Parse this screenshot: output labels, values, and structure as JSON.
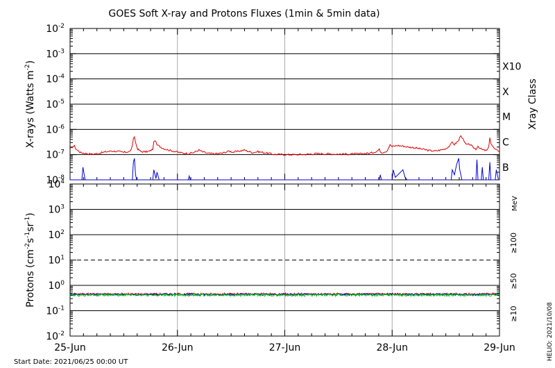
{
  "chart_data": {
    "title": "GOES Soft X-ray and Protons Fluxes   (1min & 5min data)",
    "footer_left": "Start Date: 2021/06/25 00:00 UT",
    "footer_right": "HELIO: 2021/10/08",
    "x_tick_labels": [
      "25-Jun",
      "26-Jun",
      "27-Jun",
      "28-Jun",
      "29-Jun"
    ],
    "xlim": [
      0,
      4
    ],
    "panels": [
      {
        "id": "xray",
        "type": "line",
        "y_scale": "log",
        "ylabel_parts": [
          "X-rays (Watts m",
          "-2",
          ")"
        ],
        "ylim_exp": [
          -8,
          -2
        ],
        "tick_exponents": [
          -8,
          -7,
          -6,
          -5,
          -4,
          -3,
          -2
        ],
        "solid_grid_exponents": [
          -7,
          -6,
          -5,
          -4,
          -3
        ],
        "right_axis_title": "Xray Class",
        "class_labels": [
          {
            "label": "B",
            "exp": -7.5
          },
          {
            "label": "C",
            "exp": -6.5
          },
          {
            "label": "M",
            "exp": -5.5
          },
          {
            "label": "X",
            "exp": -4.5
          },
          {
            "label": "X10",
            "exp": -3.5
          }
        ],
        "series": [
          {
            "color": "#dd0000",
            "points": [
              [
                0.0,
                -6.78
              ],
              [
                0.02,
                -6.7
              ],
              [
                0.04,
                -6.66
              ],
              [
                0.06,
                -6.8
              ],
              [
                0.1,
                -6.92
              ],
              [
                0.14,
                -6.95
              ],
              [
                0.2,
                -6.98
              ],
              [
                0.26,
                -6.96
              ],
              [
                0.32,
                -6.9
              ],
              [
                0.38,
                -6.86
              ],
              [
                0.44,
                -6.87
              ],
              [
                0.5,
                -6.91
              ],
              [
                0.56,
                -6.87
              ],
              [
                0.58,
                -6.66
              ],
              [
                0.59,
                -6.4
              ],
              [
                0.6,
                -6.28
              ],
              [
                0.61,
                -6.52
              ],
              [
                0.63,
                -6.78
              ],
              [
                0.66,
                -6.88
              ],
              [
                0.7,
                -6.89
              ],
              [
                0.74,
                -6.87
              ],
              [
                0.77,
                -6.78
              ],
              [
                0.78,
                -6.52
              ],
              [
                0.79,
                -6.42
              ],
              [
                0.81,
                -6.62
              ],
              [
                0.83,
                -6.66
              ],
              [
                0.86,
                -6.74
              ],
              [
                0.9,
                -6.8
              ],
              [
                0.95,
                -6.85
              ],
              [
                1.0,
                -6.9
              ],
              [
                1.05,
                -6.94
              ],
              [
                1.1,
                -6.96
              ],
              [
                1.15,
                -6.92
              ],
              [
                1.2,
                -6.82
              ],
              [
                1.23,
                -6.88
              ],
              [
                1.28,
                -6.95
              ],
              [
                1.35,
                -6.97
              ],
              [
                1.42,
                -6.94
              ],
              [
                1.48,
                -6.86
              ],
              [
                1.52,
                -6.9
              ],
              [
                1.58,
                -6.86
              ],
              [
                1.62,
                -6.82
              ],
              [
                1.66,
                -6.87
              ],
              [
                1.7,
                -6.92
              ],
              [
                1.75,
                -6.88
              ],
              [
                1.8,
                -6.92
              ],
              [
                1.85,
                -6.95
              ],
              [
                1.9,
                -6.99
              ],
              [
                2.0,
                -7.0
              ],
              [
                2.1,
                -7.0
              ],
              [
                2.2,
                -6.99
              ],
              [
                2.3,
                -6.96
              ],
              [
                2.4,
                -6.97
              ],
              [
                2.5,
                -6.98
              ],
              [
                2.6,
                -6.98
              ],
              [
                2.7,
                -6.97
              ],
              [
                2.8,
                -6.94
              ],
              [
                2.85,
                -6.88
              ],
              [
                2.88,
                -6.8
              ],
              [
                2.9,
                -6.92
              ],
              [
                2.95,
                -6.86
              ],
              [
                2.98,
                -6.62
              ],
              [
                3.0,
                -6.68
              ],
              [
                3.05,
                -6.64
              ],
              [
                3.1,
                -6.66
              ],
              [
                3.15,
                -6.7
              ],
              [
                3.2,
                -6.72
              ],
              [
                3.25,
                -6.76
              ],
              [
                3.3,
                -6.8
              ],
              [
                3.35,
                -6.84
              ],
              [
                3.4,
                -6.86
              ],
              [
                3.45,
                -6.82
              ],
              [
                3.5,
                -6.76
              ],
              [
                3.54,
                -6.64
              ],
              [
                3.56,
                -6.5
              ],
              [
                3.58,
                -6.6
              ],
              [
                3.62,
                -6.44
              ],
              [
                3.64,
                -6.22
              ],
              [
                3.66,
                -6.4
              ],
              [
                3.68,
                -6.56
              ],
              [
                3.7,
                -6.62
              ],
              [
                3.72,
                -6.58
              ],
              [
                3.75,
                -6.7
              ],
              [
                3.78,
                -6.78
              ],
              [
                3.8,
                -6.66
              ],
              [
                3.82,
                -6.76
              ],
              [
                3.85,
                -6.82
              ],
              [
                3.88,
                -6.84
              ],
              [
                3.9,
                -6.72
              ],
              [
                3.91,
                -6.3
              ],
              [
                3.92,
                -6.55
              ],
              [
                3.94,
                -6.7
              ],
              [
                3.96,
                -6.8
              ],
              [
                3.98,
                -6.84
              ],
              [
                4.0,
                -6.86
              ]
            ]
          },
          {
            "color": "#0000dd",
            "points": [
              [
                0.0,
                -8.0
              ],
              [
                0.11,
                -8.0
              ],
              [
                0.12,
                -7.5
              ],
              [
                0.14,
                -8.0
              ],
              [
                0.58,
                -8.0
              ],
              [
                0.59,
                -7.3
              ],
              [
                0.6,
                -7.15
              ],
              [
                0.61,
                -7.8
              ],
              [
                0.62,
                -8.0
              ],
              [
                0.77,
                -8.0
              ],
              [
                0.78,
                -7.6
              ],
              [
                0.8,
                -7.95
              ],
              [
                0.81,
                -7.7
              ],
              [
                0.83,
                -8.0
              ],
              [
                1.1,
                -8.0
              ],
              [
                1.11,
                -7.85
              ],
              [
                1.12,
                -8.0
              ],
              [
                2.88,
                -8.0
              ],
              [
                2.89,
                -7.8
              ],
              [
                2.9,
                -8.0
              ],
              [
                3.0,
                -8.0
              ],
              [
                3.01,
                -7.6
              ],
              [
                3.03,
                -7.9
              ],
              [
                3.1,
                -7.6
              ],
              [
                3.12,
                -7.9
              ],
              [
                3.14,
                -8.0
              ],
              [
                3.55,
                -8.0
              ],
              [
                3.56,
                -7.6
              ],
              [
                3.58,
                -7.8
              ],
              [
                3.6,
                -7.4
              ],
              [
                3.62,
                -7.15
              ],
              [
                3.63,
                -7.6
              ],
              [
                3.65,
                -8.0
              ],
              [
                3.78,
                -8.0
              ],
              [
                3.79,
                -7.2
              ],
              [
                3.8,
                -8.0
              ],
              [
                3.83,
                -8.0
              ],
              [
                3.84,
                -7.5
              ],
              [
                3.85,
                -8.0
              ],
              [
                3.9,
                -8.0
              ],
              [
                3.91,
                -7.3
              ],
              [
                3.92,
                -8.0
              ],
              [
                3.96,
                -8.0
              ],
              [
                3.97,
                -7.6
              ],
              [
                3.99,
                -8.0
              ],
              [
                4.0,
                -8.0
              ]
            ]
          }
        ]
      },
      {
        "id": "protons",
        "type": "line",
        "y_scale": "log",
        "ylabel_parts": [
          "Protons (cm",
          "-2",
          "s",
          "-1",
          "sr",
          "-1",
          ")"
        ],
        "ylim_exp": [
          -2,
          4
        ],
        "tick_exponents": [
          -2,
          -1,
          0,
          1,
          2,
          3,
          4
        ],
        "solid_grid_exponents": [
          -1,
          0,
          2,
          3
        ],
        "dashed_grid_exponents": [
          1
        ],
        "right_axis_unit": "MeV",
        "energy_labels": [
          {
            "label": "≥100",
            "color": "#00cc00"
          },
          {
            "label": "≥50",
            "color": "#0000dd"
          },
          {
            "label": "≥10",
            "color": "#dd0000"
          }
        ],
        "series": [
          {
            "name": "≥10",
            "color": "#dd0000",
            "level_exp": -0.34,
            "noise_exp": 0.04
          },
          {
            "name": "≥50",
            "color": "#0000dd",
            "level_exp": -0.36,
            "noise_exp": 0.04
          },
          {
            "name": "≥100",
            "color": "#00cc00",
            "level_exp": -0.38,
            "noise_exp": 0.05
          }
        ]
      }
    ]
  }
}
